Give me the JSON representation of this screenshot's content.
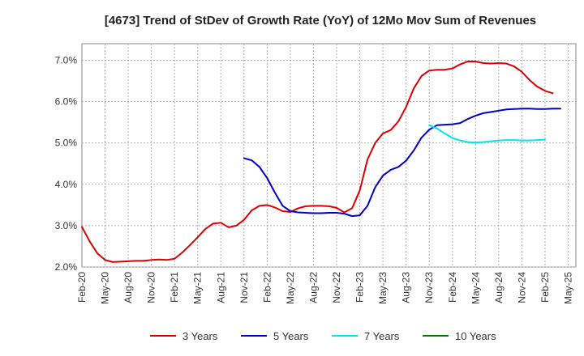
{
  "chart_data": {
    "type": "line",
    "title": "[4673]  Trend of StDev of Growth Rate (YoY) of 12Mo Mov Sum of Revenues",
    "xlabel": "",
    "ylabel": "",
    "ylim": [
      2.0,
      7.4
    ],
    "yticks": [
      "2.0%",
      "3.0%",
      "4.0%",
      "5.0%",
      "6.0%",
      "7.0%"
    ],
    "ytick_values": [
      2.0,
      3.0,
      4.0,
      5.0,
      6.0,
      7.0
    ],
    "xticks": [
      "Feb-20",
      "May-20",
      "Aug-20",
      "Nov-20",
      "Feb-21",
      "May-21",
      "Aug-21",
      "Nov-21",
      "Feb-22",
      "May-22",
      "Aug-22",
      "Nov-22",
      "Feb-23",
      "May-23",
      "Aug-23",
      "Nov-23",
      "Feb-24",
      "May-24",
      "Aug-24",
      "Nov-24",
      "Feb-25",
      "May-25"
    ],
    "x_months_total": 64,
    "grid": true,
    "legend_position": "bottom",
    "series": [
      {
        "name": "3 Years",
        "color": "#dd0000",
        "start_index": 0,
        "values": [
          2.97,
          2.62,
          2.33,
          2.17,
          2.12,
          2.13,
          2.14,
          2.15,
          2.15,
          2.17,
          2.18,
          2.17,
          2.2,
          2.35,
          2.53,
          2.72,
          2.92,
          3.05,
          3.07,
          2.96,
          3.0,
          3.14,
          3.37,
          3.48,
          3.5,
          3.44,
          3.35,
          3.33,
          3.42,
          3.47,
          3.48,
          3.48,
          3.47,
          3.43,
          3.32,
          3.42,
          3.85,
          4.6,
          5.0,
          5.23,
          5.31,
          5.52,
          5.87,
          6.32,
          6.62,
          6.75,
          6.77,
          6.77,
          6.8,
          6.9,
          6.97,
          6.97,
          6.93,
          6.92,
          6.93,
          6.92,
          6.85,
          6.72,
          6.52,
          6.36,
          6.26,
          6.2
        ]
      },
      {
        "name": "5 Years",
        "color": "#0000cc",
        "start_index": 21,
        "values": [
          4.63,
          4.58,
          4.42,
          4.15,
          3.8,
          3.48,
          3.35,
          3.32,
          3.31,
          3.3,
          3.3,
          3.31,
          3.31,
          3.29,
          3.23,
          3.25,
          3.48,
          3.93,
          4.21,
          4.35,
          4.42,
          4.57,
          4.82,
          5.13,
          5.32,
          5.43,
          5.44,
          5.45,
          5.48,
          5.58,
          5.66,
          5.72,
          5.75,
          5.78,
          5.81,
          5.82,
          5.83,
          5.83,
          5.82,
          5.82,
          5.83,
          5.83
        ]
      },
      {
        "name": "7 Years",
        "color": "#00e5ee",
        "start_index": 45,
        "values": [
          5.43,
          5.35,
          5.23,
          5.12,
          5.06,
          5.02,
          5.01,
          5.02,
          5.04,
          5.06,
          5.07,
          5.07,
          5.06,
          5.06,
          5.07,
          5.08
        ]
      },
      {
        "name": "10 Years",
        "color": "#008000",
        "start_index": 0,
        "values": []
      }
    ]
  }
}
